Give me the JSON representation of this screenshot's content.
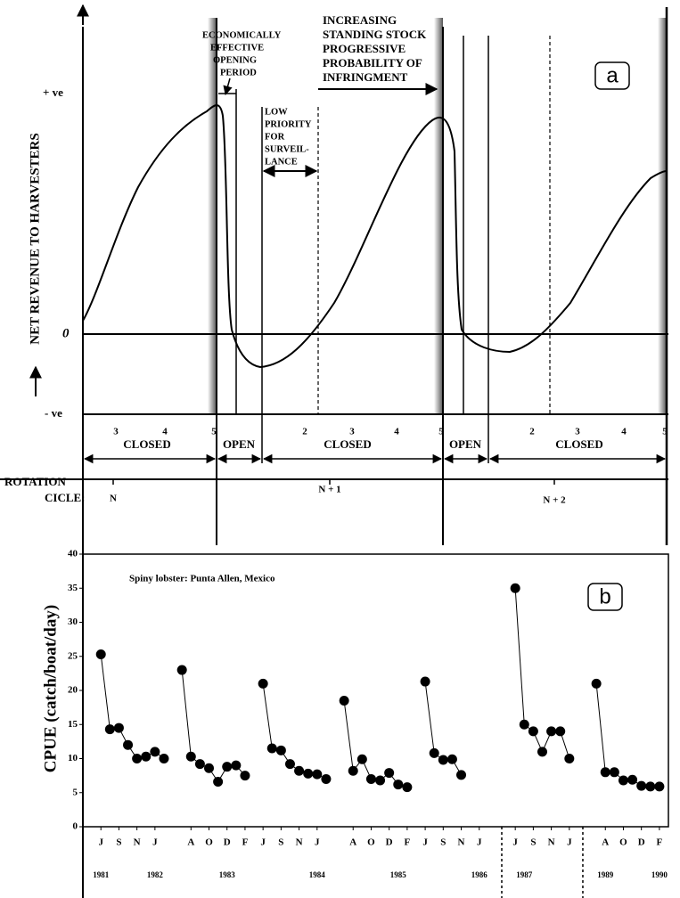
{
  "diagram": {
    "label": "a",
    "y_axis": {
      "label": "NET REVENUE TO HARVESTERS",
      "top": "+ ve",
      "zero": "0",
      "bottom": "- ve"
    },
    "annotations": [
      {
        "lines": [
          "ECONOMICALLY",
          "EFFECTIVE",
          "OPENING",
          "PERIOD"
        ]
      },
      {
        "lines": [
          "LOW",
          "PRIORITY",
          "FOR",
          "SURVEIL-",
          "LANCE"
        ]
      },
      {
        "lines": [
          "INCREASING",
          "STANDING STOCK",
          "PROGRESSIVE",
          "PROBABILITY OF",
          "INFRINGMENT"
        ]
      }
    ],
    "month_markers": [
      "3",
      "4",
      "5",
      "2",
      "3",
      "4",
      "5",
      "2",
      "3",
      "4",
      "5"
    ],
    "periods": [
      "CLOSED",
      "OPEN",
      "CLOSED",
      "OPEN",
      "CLOSED"
    ],
    "rotation": {
      "label_lines": [
        "ROTATION",
        "CICLE:"
      ],
      "cycles": [
        "N",
        "N + 1",
        "N + 2"
      ]
    }
  },
  "chart_data": {
    "type": "line",
    "panel_label": "b",
    "annotation": "Spiny lobster:  Punta Allen, Mexico",
    "y_label": "CPUE (catch/boat/day)",
    "color": "#000000",
    "ylim": [
      0,
      40
    ],
    "yticks": [
      0,
      5,
      10,
      15,
      20,
      25,
      30,
      35,
      40
    ],
    "xlim": [
      -2,
      63
    ],
    "xticks": [
      {
        "value": 0,
        "label": "J"
      },
      {
        "value": 2,
        "label": "S"
      },
      {
        "value": 4,
        "label": "N"
      },
      {
        "value": 6,
        "label": "J"
      },
      {
        "value": 10,
        "label": "A"
      },
      {
        "value": 12,
        "label": "O"
      },
      {
        "value": 14,
        "label": "D"
      },
      {
        "value": 16,
        "label": "F"
      },
      {
        "value": 18,
        "label": "J"
      },
      {
        "value": 20,
        "label": "S"
      },
      {
        "value": 22,
        "label": "N"
      },
      {
        "value": 24,
        "label": "J"
      },
      {
        "value": 28,
        "label": "A"
      },
      {
        "value": 30,
        "label": "O"
      },
      {
        "value": 32,
        "label": "D"
      },
      {
        "value": 34,
        "label": "F"
      },
      {
        "value": 36,
        "label": "J"
      },
      {
        "value": 38,
        "label": "S"
      },
      {
        "value": 40,
        "label": "N"
      },
      {
        "value": 42,
        "label": "J"
      },
      {
        "value": 46,
        "label": "J"
      },
      {
        "value": 48,
        "label": "S"
      },
      {
        "value": 50,
        "label": "N"
      },
      {
        "value": 52,
        "label": "J"
      },
      {
        "value": 56,
        "label": "A"
      },
      {
        "value": 58,
        "label": "O"
      },
      {
        "value": 60,
        "label": "D"
      },
      {
        "value": 62,
        "label": "F"
      }
    ],
    "year_ticks": [
      {
        "value": 0,
        "label": "1981"
      },
      {
        "value": 6,
        "label": "1982"
      },
      {
        "value": 14,
        "label": "1983"
      },
      {
        "value": 24,
        "label": "1984"
      },
      {
        "value": 33,
        "label": "1985"
      },
      {
        "value": 42,
        "label": "1986"
      },
      {
        "value": 47,
        "label": "1987"
      },
      {
        "value": 56,
        "label": "1989"
      },
      {
        "value": 62,
        "label": "1990"
      }
    ],
    "dividers": [
      44.5,
      53.5
    ],
    "series": [
      {
        "x": [
          0,
          1,
          2,
          3,
          4,
          5,
          6,
          7
        ],
        "values": [
          25.3,
          14.3,
          14.5,
          12,
          10,
          10.3,
          11,
          10
        ]
      },
      {
        "x": [
          9,
          10,
          11,
          12,
          13,
          14,
          15,
          16
        ],
        "values": [
          23,
          10.3,
          9.2,
          8.6,
          6.6,
          8.8,
          9,
          7.5
        ]
      },
      {
        "x": [
          18,
          19,
          20,
          21,
          22,
          23,
          24,
          25
        ],
        "values": [
          21,
          11.5,
          11.2,
          9.2,
          8.2,
          7.8,
          7.7,
          7
        ]
      },
      {
        "x": [
          27,
          28,
          29,
          30,
          31,
          32,
          33,
          34
        ],
        "values": [
          18.5,
          8.2,
          9.9,
          7,
          6.8,
          7.9,
          6.2,
          5.8
        ]
      },
      {
        "x": [
          36,
          37,
          38,
          39,
          40
        ],
        "values": [
          21.3,
          10.8,
          9.8,
          9.9,
          7.6
        ]
      },
      {
        "x": [
          46,
          47,
          48,
          49,
          50,
          51,
          52
        ],
        "values": [
          35,
          15,
          14,
          11,
          14,
          14,
          10
        ]
      },
      {
        "x": [
          55,
          56,
          57,
          58,
          59,
          60,
          61,
          62
        ],
        "values": [
          21,
          8,
          8,
          6.8,
          6.9,
          6,
          5.9,
          5.9
        ]
      }
    ]
  }
}
